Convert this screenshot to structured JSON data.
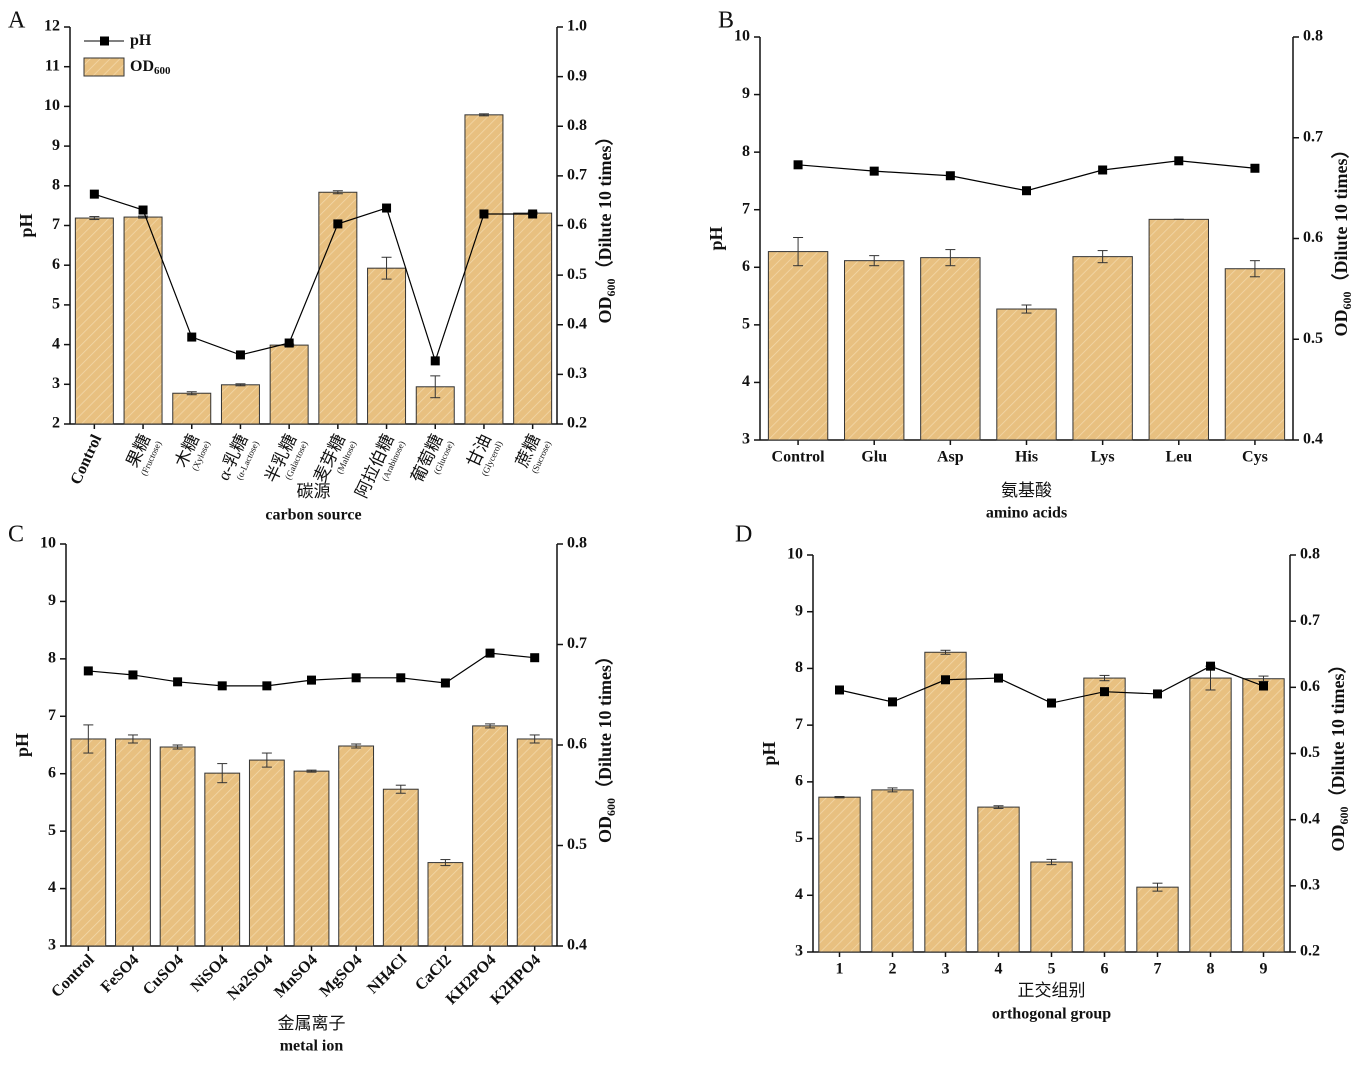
{
  "chart_data": [
    {
      "type": "combo",
      "panel": "A",
      "legend": "upper left",
      "categories": [
        "Control",
        "果糖",
        "木糖",
        "α-乳糖",
        "半乳糖",
        "麦芽糖",
        "阿拉伯糖",
        "葡萄糖",
        "甘油",
        "蔗糖"
      ],
      "category_notes": [
        null,
        "(Fructose)",
        "(Xylose)",
        "(α-Lactose)",
        "(Galactose)",
        "(Maltose)",
        "(Arabinose)",
        "(Glucose)",
        "(Glycerol)",
        "(Sucrose)"
      ],
      "xlabel": "碳源",
      "xlabel_en": "carbon source",
      "ylabel": "pH",
      "y2label": {
        "main": "OD",
        "sub": "600",
        "rest": "（Dilute 10 times）"
      },
      "ylim": [
        2,
        12
      ],
      "yticks": [
        2,
        3,
        4,
        5,
        6,
        7,
        8,
        9,
        10,
        11,
        12
      ],
      "y2lim": [
        0.2,
        1.0
      ],
      "y2ticks": [
        0.2,
        0.3,
        0.4,
        0.5,
        0.6,
        0.7,
        0.8,
        0.9,
        {
          "value": 1.0,
          "label": "1.0"
        }
      ],
      "series": [
        {
          "name": "OD",
          "name_sub": "600",
          "type": "bar",
          "axis": "y2",
          "color": "#e8c080",
          "values": [
            0.615,
            0.617,
            0.262,
            0.279,
            0.359,
            0.667,
            0.514,
            0.275,
            0.823,
            0.625
          ],
          "errors": [
            0.003,
            0.002,
            0.003,
            0.002,
            0.002,
            0.003,
            0.022,
            0.022,
            0.002,
            0.002
          ]
        },
        {
          "name": "pH",
          "type": "line",
          "color": "#000000",
          "values": [
            7.79,
            7.39,
            4.19,
            3.74,
            4.04,
            7.04,
            7.44,
            3.59,
            7.29,
            7.29
          ]
        }
      ]
    },
    {
      "type": "combo",
      "panel": "B",
      "categories": [
        "Control",
        "Glu",
        "Asp",
        "His",
        "Lys",
        "Leu",
        "Cys"
      ],
      "xlabel": "氨基酸",
      "xlabel_en": "amino acids",
      "ylabel": "pH",
      "y2label": {
        "main": "OD",
        "sub": "600",
        "rest": "（Dilute 10 times）"
      },
      "ylim": [
        3,
        10
      ],
      "yticks": [
        3,
        4,
        5,
        6,
        7,
        8,
        9,
        10
      ],
      "y2lim": [
        0.4,
        0.8
      ],
      "y2ticks": [
        0.4,
        0.5,
        0.6,
        0.7,
        0.8
      ],
      "series": [
        {
          "name": "OD",
          "name_sub": "600",
          "type": "bar",
          "axis": "y2",
          "color": "#e8c080",
          "values": [
            0.587,
            0.578,
            0.581,
            0.53,
            0.582,
            0.619,
            0.57
          ],
          "errors": [
            0.014,
            0.005,
            0.008,
            0.004,
            0.006,
            0,
            0.008
          ]
        },
        {
          "name": "pH",
          "type": "line",
          "color": "#000000",
          "values": [
            7.78,
            7.67,
            7.59,
            7.33,
            7.69,
            7.85,
            7.72
          ]
        }
      ]
    },
    {
      "type": "combo",
      "panel": "C",
      "categories": [
        "Control",
        "FeSO4",
        "CuSO4",
        "NiSO4",
        "Na2SO4",
        "MnSO4",
        "MgSO4",
        "NH4Cl",
        "CaCl2",
        "KH2PO4",
        "K2HPO4"
      ],
      "xlabel": "金属离子",
      "xlabel_en": "metal ion",
      "ylabel": "pH",
      "y2label": {
        "main": "OD",
        "sub": "600",
        "rest": "（Dilute 10 times）"
      },
      "ylim": [
        3,
        10
      ],
      "yticks": [
        3,
        4,
        5,
        6,
        7,
        8,
        9,
        10
      ],
      "y2lim": [
        0.4,
        0.8
      ],
      "y2ticks": [
        0.4,
        0.5,
        0.6,
        0.7,
        0.8
      ],
      "series": [
        {
          "name": "OD",
          "name_sub": "600",
          "type": "bar",
          "axis": "y2",
          "color": "#e8c080",
          "values": [
            0.606,
            0.606,
            0.598,
            0.572,
            0.585,
            0.574,
            0.599,
            0.556,
            0.483,
            0.619,
            0.606
          ],
          "errors": [
            0.014,
            0.004,
            0.002,
            0.0095,
            0.007,
            0.001,
            0.002,
            0.004,
            0.003,
            0.002,
            0.004
          ]
        },
        {
          "name": "pH",
          "type": "line",
          "color": "#000000",
          "values": [
            7.79,
            7.72,
            7.6,
            7.53,
            7.53,
            7.63,
            7.67,
            7.67,
            7.58,
            8.1,
            8.02
          ]
        }
      ]
    },
    {
      "type": "combo",
      "panel": "D",
      "categories": [
        "1",
        "2",
        "3",
        "4",
        "5",
        "6",
        "7",
        "8",
        "9"
      ],
      "xlabel": "正交组别",
      "xlabel_en": "orthogonal group",
      "ylabel": "pH",
      "y2label": {
        "main": "OD",
        "sub": "600",
        "rest": "（Dilute 10 times）"
      },
      "ylim": [
        3,
        10
      ],
      "yticks": [
        3,
        4,
        5,
        6,
        7,
        8,
        9,
        10
      ],
      "y2lim": [
        0.2,
        0.8
      ],
      "y2ticks": [
        0.2,
        0.3,
        0.4,
        0.5,
        0.6,
        0.7,
        0.8
      ],
      "series": [
        {
          "name": "OD",
          "name_sub": "600",
          "type": "bar",
          "axis": "y2",
          "color": "#e8c080",
          "values": [
            0.434,
            0.445,
            0.653,
            0.419,
            0.336,
            0.614,
            0.298,
            0.614,
            0.613
          ],
          "errors": [
            0.001,
            0.003,
            0.003,
            0.002,
            0.004,
            0.004,
            0.006,
            0.018,
            0.004
          ]
        },
        {
          "name": "pH",
          "type": "line",
          "color": "#000000",
          "values": [
            7.62,
            7.41,
            7.8,
            7.83,
            7.39,
            7.59,
            7.55,
            8.04,
            7.69
          ]
        }
      ]
    }
  ]
}
